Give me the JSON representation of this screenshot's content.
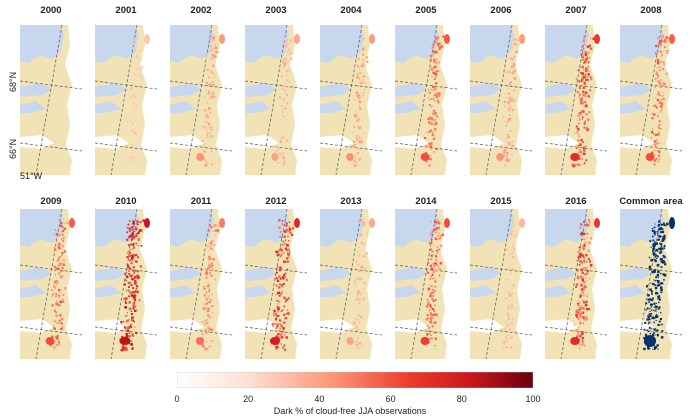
{
  "panels": [
    {
      "year": "2000",
      "dark": 0.0,
      "kind": "dark"
    },
    {
      "year": "2001",
      "dark": 0.1,
      "kind": "dark"
    },
    {
      "year": "2002",
      "dark": 0.25,
      "kind": "dark"
    },
    {
      "year": "2003",
      "dark": 0.2,
      "kind": "dark"
    },
    {
      "year": "2004",
      "dark": 0.25,
      "kind": "dark"
    },
    {
      "year": "2005",
      "dark": 0.45,
      "kind": "dark"
    },
    {
      "year": "2006",
      "dark": 0.25,
      "kind": "dark"
    },
    {
      "year": "2007",
      "dark": 0.6,
      "kind": "dark"
    },
    {
      "year": "2008",
      "dark": 0.45,
      "kind": "dark"
    },
    {
      "year": "2009",
      "dark": 0.45,
      "kind": "dark"
    },
    {
      "year": "2010",
      "dark": 0.85,
      "kind": "dark"
    },
    {
      "year": "2011",
      "dark": 0.35,
      "kind": "dark"
    },
    {
      "year": "2012",
      "dark": 0.7,
      "kind": "dark"
    },
    {
      "year": "2013",
      "dark": 0.2,
      "kind": "dark"
    },
    {
      "year": "2014",
      "dark": 0.5,
      "kind": "dark"
    },
    {
      "year": "2015",
      "dark": 0.15,
      "kind": "dark"
    },
    {
      "year": "2016",
      "dark": 0.6,
      "kind": "dark"
    },
    {
      "year": "Common area",
      "dark": 1.0,
      "kind": "common"
    }
  ],
  "labels": {
    "lat_68": "68°N",
    "lat_66": "66°N",
    "lon_51": "51°W"
  },
  "colorbar": {
    "label": "Dark % of cloud-free JJA observations",
    "ticks": [
      "0",
      "20",
      "40",
      "60",
      "80",
      "100"
    ],
    "min": 0,
    "max": 100,
    "colors": [
      "#ffffff",
      "#fee0d2",
      "#fc9272",
      "#ef3b2c",
      "#cb181d",
      "#67000d"
    ]
  },
  "colors": {
    "land": "#f1e3b5",
    "water": "#c6d7ee",
    "common": "#08306b"
  }
}
